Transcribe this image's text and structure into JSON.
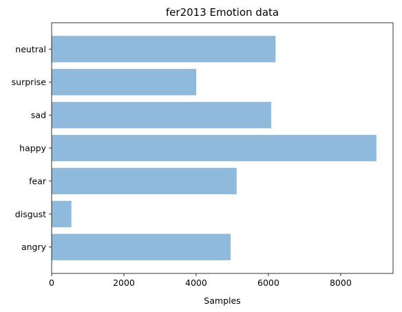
{
  "chart_data": {
    "type": "bar",
    "orientation": "horizontal",
    "title": "fer2013 Emotion data",
    "xlabel": "Samples",
    "ylabel": "",
    "categories": [
      "angry",
      "disgust",
      "fear",
      "happy",
      "sad",
      "surprise",
      "neutral"
    ],
    "values": [
      4953,
      547,
      5121,
      8989,
      6077,
      4002,
      6198
    ],
    "xlim": [
      0,
      9450
    ],
    "xticks": [
      0,
      2000,
      4000,
      6000,
      8000
    ],
    "xtick_labels": [
      "0",
      "2000",
      "4000",
      "6000",
      "8000"
    ],
    "grid": false,
    "bar_color": "#8fbadb"
  }
}
